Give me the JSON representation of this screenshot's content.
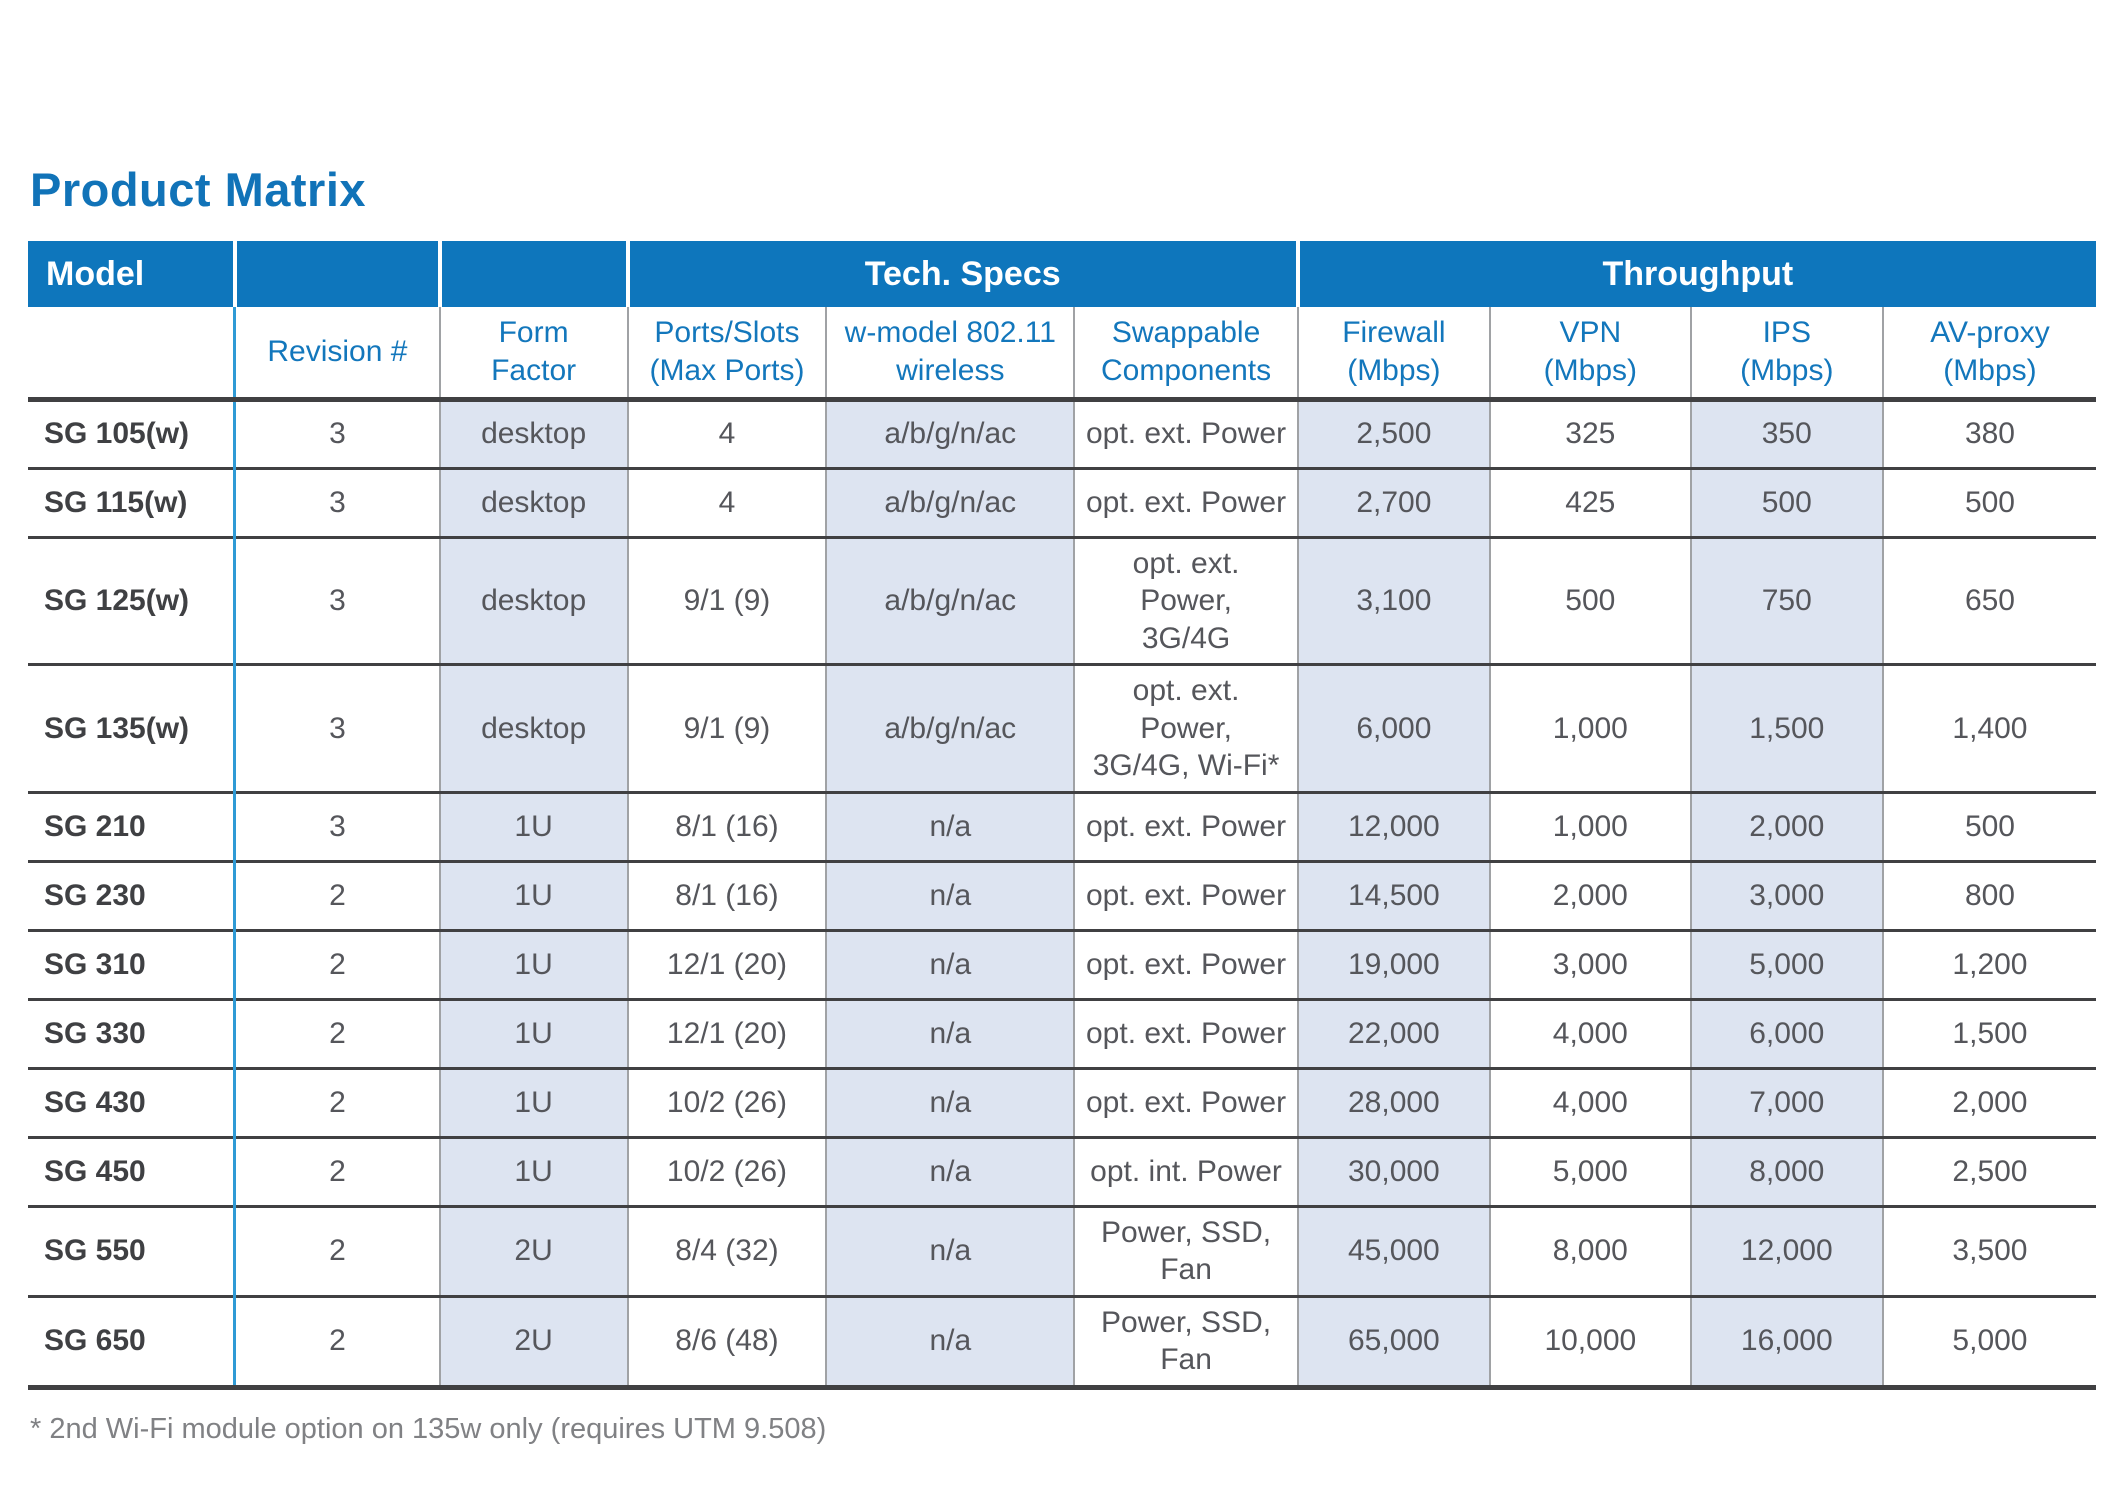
{
  "page": {
    "title": "Product Matrix",
    "footnote": "* 2nd Wi-Fi module option on 135w only (requires UTM 9.508)"
  },
  "colors": {
    "accent_blue": "#0e76bc",
    "title_blue": "#1173b8",
    "header_text": "#ffffff",
    "subheader_text": "#1377bc",
    "shaded_column": "#dde4f1",
    "row_border_dark": "#404042",
    "column_border_grey": "#a0a2a5",
    "model_divider_blue": "#2f9ad5",
    "body_text": "#55565b",
    "model_text": "#3f4043",
    "footnote_text": "#808184"
  },
  "table": {
    "group_header": {
      "model": "Model",
      "tech_specs": "Tech. Specs",
      "throughput": "Throughput"
    },
    "columns": [
      {
        "key": "model",
        "label": ""
      },
      {
        "key": "revision",
        "label": "Revision #"
      },
      {
        "key": "form_factor",
        "label": "Form\nFactor"
      },
      {
        "key": "ports_slots",
        "label": "Ports/Slots\n(Max Ports)"
      },
      {
        "key": "wireless",
        "label": "w-model 802.11\nwireless"
      },
      {
        "key": "swappable",
        "label": "Swappable\nComponents"
      },
      {
        "key": "firewall",
        "label": "Firewall\n(Mbps)"
      },
      {
        "key": "vpn",
        "label": "VPN\n(Mbps)"
      },
      {
        "key": "ips",
        "label": "IPS\n(Mbps)"
      },
      {
        "key": "av_proxy",
        "label": "AV-proxy\n(Mbps)"
      }
    ],
    "shaded_columns": [
      2,
      4,
      6,
      8
    ],
    "rows": [
      [
        "SG 105(w)",
        "3",
        "desktop",
        "4",
        "a/b/g/n/ac",
        "opt. ext. Power",
        "2,500",
        "325",
        "350",
        "380"
      ],
      [
        "SG 115(w)",
        "3",
        "desktop",
        "4",
        "a/b/g/n/ac",
        "opt. ext. Power",
        "2,700",
        "425",
        "500",
        "500"
      ],
      [
        "SG 125(w)",
        "3",
        "desktop",
        "9/1 (9)",
        "a/b/g/n/ac",
        "opt. ext. Power,\n3G/4G",
        "3,100",
        "500",
        "750",
        "650"
      ],
      [
        "SG 135(w)",
        "3",
        "desktop",
        "9/1 (9)",
        "a/b/g/n/ac",
        "opt. ext. Power,\n3G/4G, Wi-Fi*",
        "6,000",
        "1,000",
        "1,500",
        "1,400"
      ],
      [
        "SG 210",
        "3",
        "1U",
        "8/1 (16)",
        "n/a",
        "opt. ext. Power",
        "12,000",
        "1,000",
        "2,000",
        "500"
      ],
      [
        "SG 230",
        "2",
        "1U",
        "8/1 (16)",
        "n/a",
        "opt. ext. Power",
        "14,500",
        "2,000",
        "3,000",
        "800"
      ],
      [
        "SG 310",
        "2",
        "1U",
        "12/1 (20)",
        "n/a",
        "opt. ext. Power",
        "19,000",
        "3,000",
        "5,000",
        "1,200"
      ],
      [
        "SG 330",
        "2",
        "1U",
        "12/1 (20)",
        "n/a",
        "opt. ext. Power",
        "22,000",
        "4,000",
        "6,000",
        "1,500"
      ],
      [
        "SG 430",
        "2",
        "1U",
        "10/2 (26)",
        "n/a",
        "opt. ext. Power",
        "28,000",
        "4,000",
        "7,000",
        "2,000"
      ],
      [
        "SG 450",
        "2",
        "1U",
        "10/2 (26)",
        "n/a",
        "opt. int. Power",
        "30,000",
        "5,000",
        "8,000",
        "2,500"
      ],
      [
        "SG 550",
        "2",
        "2U",
        "8/4 (32)",
        "n/a",
        "Power, SSD, Fan",
        "45,000",
        "8,000",
        "12,000",
        "3,500"
      ],
      [
        "SG 650",
        "2",
        "2U",
        "8/6 (48)",
        "n/a",
        "Power, SSD, Fan",
        "65,000",
        "10,000",
        "16,000",
        "5,000"
      ]
    ]
  }
}
